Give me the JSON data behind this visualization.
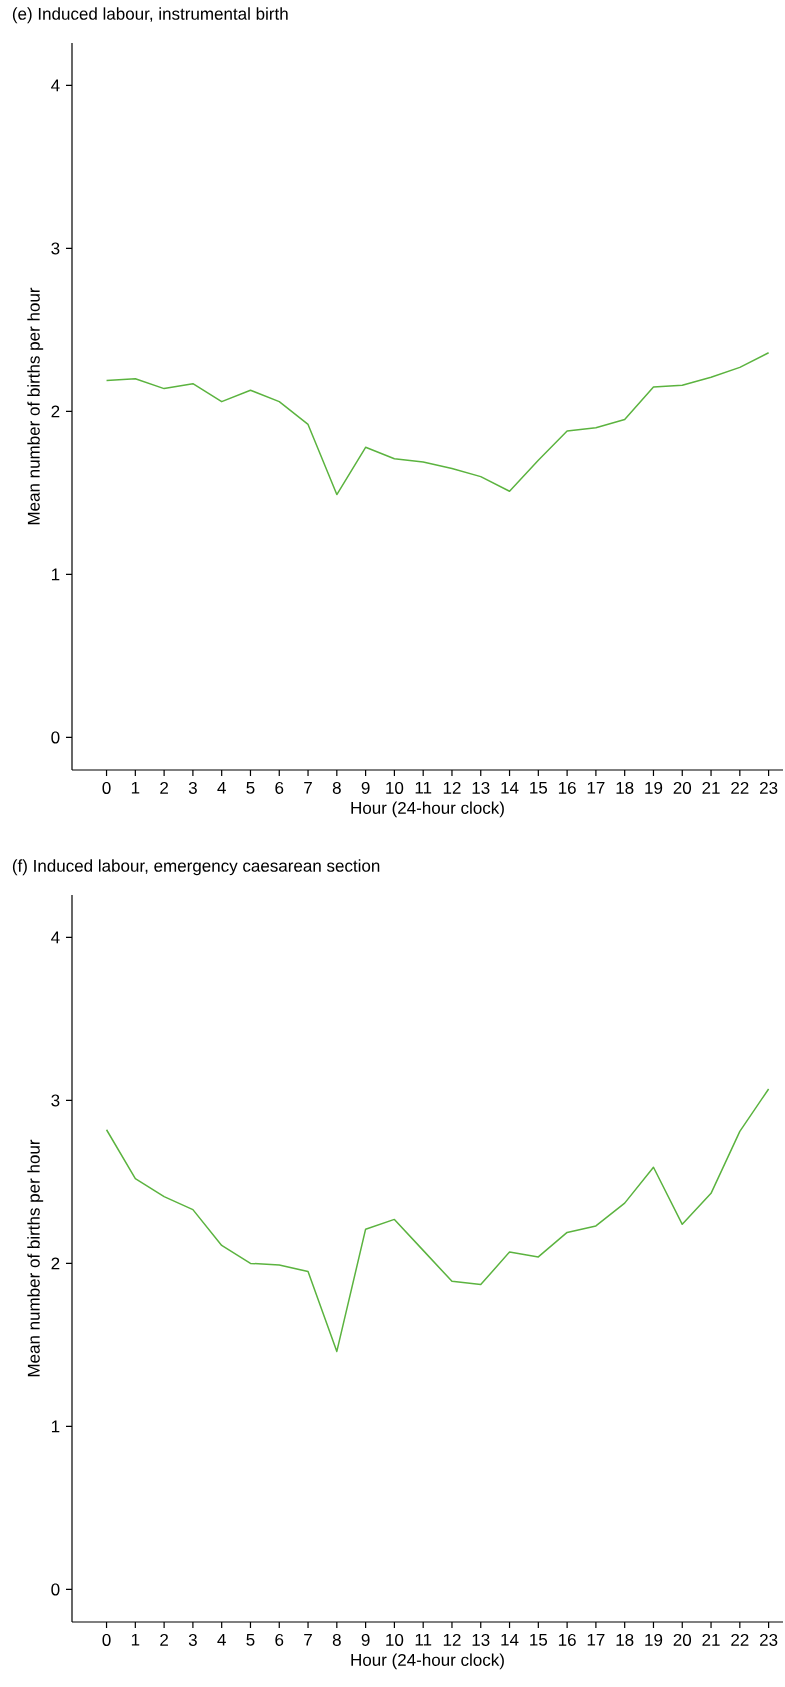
{
  "chart_data": [
    {
      "type": "line",
      "title": "(e) Induced labour, instrumental birth",
      "xlabel": "Hour (24-hour clock)",
      "ylabel": "Mean number of births per hour",
      "x": [
        0,
        1,
        2,
        3,
        4,
        5,
        6,
        7,
        8,
        9,
        10,
        11,
        12,
        13,
        14,
        15,
        16,
        17,
        18,
        19,
        20,
        21,
        22,
        23
      ],
      "series": [
        {
          "color": "#5bb33f",
          "values": [
            2.19,
            2.2,
            2.14,
            2.17,
            2.06,
            2.13,
            2.06,
            1.92,
            1.49,
            1.78,
            1.71,
            1.69,
            1.65,
            1.6,
            1.51,
            1.7,
            1.88,
            1.9,
            1.95,
            2.15,
            2.16,
            2.21,
            2.27,
            2.36
          ]
        }
      ],
      "xlim": [
        -1.2,
        23.5
      ],
      "ylim": [
        -0.2,
        4.26
      ],
      "xticks": [
        0,
        1,
        2,
        3,
        4,
        5,
        6,
        7,
        8,
        9,
        10,
        11,
        12,
        13,
        14,
        15,
        16,
        17,
        18,
        19,
        20,
        21,
        22,
        23
      ],
      "yticks": [
        0,
        1,
        2,
        3,
        4
      ]
    },
    {
      "type": "line",
      "title": "(f) Induced labour, emergency caesarean section",
      "xlabel": "Hour (24-hour clock)",
      "ylabel": "Mean number of births per hour",
      "x": [
        0,
        1,
        2,
        3,
        4,
        5,
        6,
        7,
        8,
        9,
        10,
        11,
        12,
        13,
        14,
        15,
        16,
        17,
        18,
        19,
        20,
        21,
        22,
        23
      ],
      "series": [
        {
          "color": "#5bb33f",
          "values": [
            2.82,
            2.52,
            2.41,
            2.33,
            2.11,
            2.0,
            1.99,
            1.95,
            1.46,
            2.21,
            2.27,
            2.08,
            1.89,
            1.87,
            2.07,
            2.04,
            2.19,
            2.23,
            2.37,
            2.59,
            2.24,
            2.43,
            2.81,
            3.07
          ]
        }
      ],
      "xlim": [
        -1.2,
        23.5
      ],
      "ylim": [
        -0.2,
        4.26
      ],
      "xticks": [
        0,
        1,
        2,
        3,
        4,
        5,
        6,
        7,
        8,
        9,
        10,
        11,
        12,
        13,
        14,
        15,
        16,
        17,
        18,
        19,
        20,
        21,
        22,
        23
      ],
      "yticks": [
        0,
        1,
        2,
        3,
        4
      ]
    }
  ]
}
